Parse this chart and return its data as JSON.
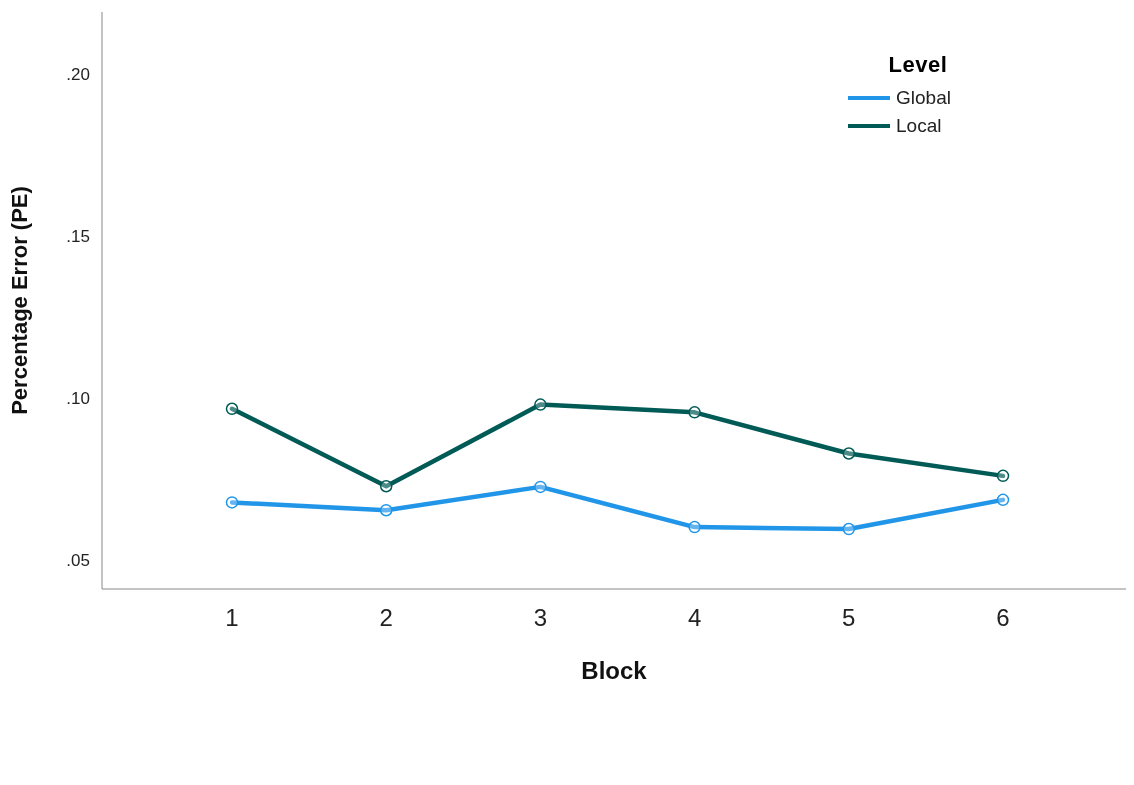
{
  "chart_data": {
    "type": "line",
    "xlabel": "Block",
    "ylabel": "Percentage Error (PE)",
    "legend_title": "Level",
    "categories": [
      "1",
      "2",
      "3",
      "4",
      "5",
      "6"
    ],
    "series": [
      {
        "name": "Global",
        "color": "#2196e8",
        "values": [
          0.0677,
          0.0653,
          0.0725,
          0.0601,
          0.0595,
          0.0685
        ]
      },
      {
        "name": "Local",
        "color": "#005a56",
        "values": [
          0.0966,
          0.0727,
          0.0979,
          0.0955,
          0.0828,
          0.0759
        ]
      }
    ],
    "ylim": [
      0.041,
      0.219
    ],
    "yticks": [
      {
        "value": 0.05,
        "label": ".05"
      },
      {
        "value": 0.1,
        "label": ".10"
      },
      {
        "value": 0.15,
        "label": ".15"
      },
      {
        "value": 0.2,
        "label": ".20"
      }
    ],
    "grid": false,
    "legend": "top right",
    "marker": "circle",
    "line_style": "solid"
  }
}
